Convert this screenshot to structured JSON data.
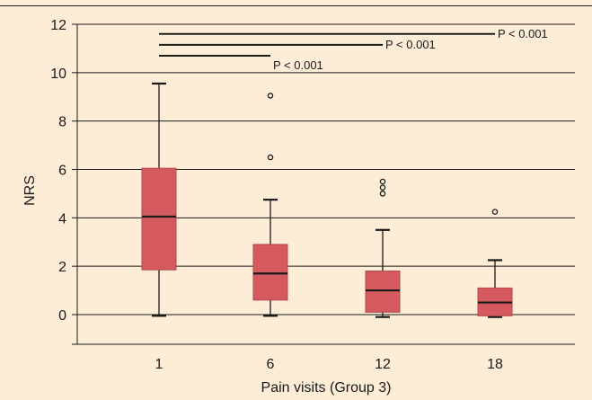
{
  "colors": {
    "background": "#fdecd6",
    "box_fill": "#d45a5f",
    "box_stroke": "#b7474c",
    "ink": "#1a1a1a"
  },
  "chart_data": {
    "type": "boxplot",
    "title": "",
    "xlabel": "Pain visits (Group 3)",
    "ylabel": "NRS",
    "ylim": [
      -1.3,
      12
    ],
    "yticks": [
      0,
      2,
      4,
      6,
      8,
      10,
      12
    ],
    "grid": "horizontal",
    "categories": [
      "1",
      "6",
      "12",
      "18"
    ],
    "boxes": [
      {
        "category": "1",
        "whisker_low": -0.05,
        "q1": 1.85,
        "median": 4.05,
        "q3": 6.05,
        "whisker_high": 9.55,
        "outliers": []
      },
      {
        "category": "6",
        "whisker_low": -0.05,
        "q1": 0.6,
        "median": 1.7,
        "q3": 2.9,
        "whisker_high": 4.75,
        "outliers": [
          6.5,
          9.05
        ]
      },
      {
        "category": "12",
        "whisker_low": -0.1,
        "q1": 0.1,
        "median": 1.0,
        "q3": 1.8,
        "whisker_high": 3.5,
        "outliers": [
          5.0,
          5.25,
          5.5
        ]
      },
      {
        "category": "18",
        "whisker_low": -0.1,
        "q1": -0.05,
        "median": 0.5,
        "q3": 1.1,
        "whisker_high": 2.25,
        "outliers": [
          4.25
        ]
      }
    ],
    "significance": [
      {
        "from": "1",
        "to": "6",
        "y": 10.7,
        "label": "P < 0.001"
      },
      {
        "from": "1",
        "to": "12",
        "y": 11.15,
        "label": "P < 0.001"
      },
      {
        "from": "1",
        "to": "18",
        "y": 11.6,
        "label": "P < 0.001"
      }
    ]
  }
}
